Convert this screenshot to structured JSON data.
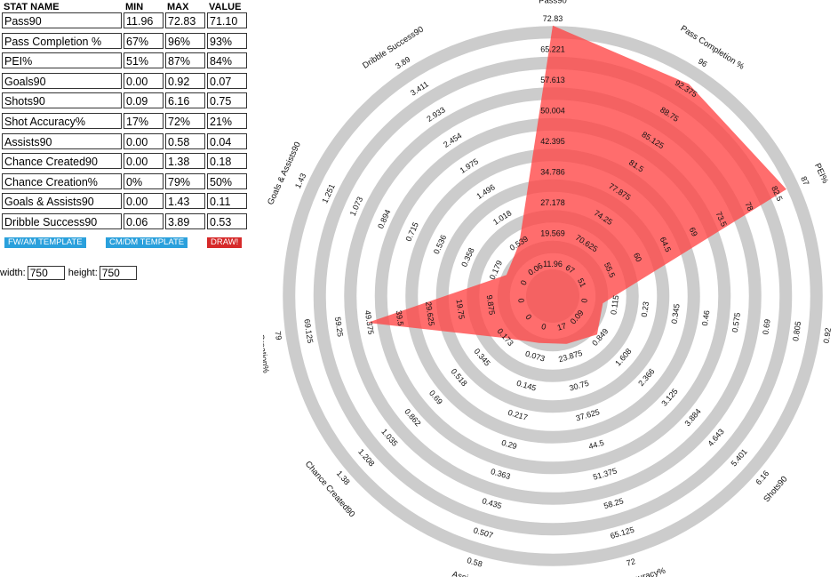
{
  "table": {
    "headers": {
      "name": "STAT NAME",
      "min": "MIN",
      "max": "MAX",
      "value": "VALUE"
    },
    "rows": [
      {
        "name": "Pass90",
        "min": "11.96",
        "max": "72.83",
        "value": "71.10"
      },
      {
        "name": "Pass Completion %",
        "min": "67%",
        "max": "96%",
        "value": "93%"
      },
      {
        "name": "PEI%",
        "min": "51%",
        "max": "87%",
        "value": "84%"
      },
      {
        "name": "Goals90",
        "min": "0.00",
        "max": "0.92",
        "value": "0.07"
      },
      {
        "name": "Shots90",
        "min": "0.09",
        "max": "6.16",
        "value": "0.75"
      },
      {
        "name": "Shot Accuracy%",
        "min": "17%",
        "max": "72%",
        "value": "21%"
      },
      {
        "name": "Assists90",
        "min": "0.00",
        "max": "0.58",
        "value": "0.04"
      },
      {
        "name": "Chance Created90",
        "min": "0.00",
        "max": "1.38",
        "value": "0.18"
      },
      {
        "name": "Chance Creation%",
        "min": "0%",
        "max": "79%",
        "value": "50%"
      },
      {
        "name": "Goals & Assists90",
        "min": "0.00",
        "max": "1.43",
        "value": "0.11"
      },
      {
        "name": "Dribble Success90",
        "min": "0.06",
        "max": "3.89",
        "value": "0.53"
      }
    ]
  },
  "buttons": {
    "fw_am": "FW/AM TEMPLATE",
    "cm_dm": "CM/DM TEMPLATE",
    "draw": "DRAW!"
  },
  "dimensions": {
    "width_label": "width:",
    "width_value": "750",
    "height_label": "height:",
    "height_value": "750"
  },
  "colors": {
    "ring": "#cccccc",
    "fill": "#ff4444",
    "accent_blue": "#2aa0dc",
    "draw_red": "#d62a2a"
  },
  "chart_data": {
    "type": "radar",
    "rings": 8,
    "axes": [
      {
        "name": "Pass90",
        "min": 11.96,
        "max": 72.83,
        "value": 71.1,
        "ticks": [
          "11.96",
          "19.569",
          "27.178",
          "34.786",
          "42.395",
          "50.004",
          "57.613",
          "65.221",
          "72.83"
        ]
      },
      {
        "name": "Pass Completion %",
        "min": 67,
        "max": 96,
        "value": 93,
        "ticks": [
          "67",
          "70.625",
          "74.25",
          "77.875",
          "81.5",
          "85.125",
          "88.75",
          "92.375",
          "96"
        ]
      },
      {
        "name": "PEI%",
        "min": 51,
        "max": 87,
        "value": 84,
        "ticks": [
          "51",
          "55.5",
          "60",
          "64.5",
          "69",
          "73.5",
          "78",
          "82.5",
          "87"
        ]
      },
      {
        "name": "Goals90",
        "min": 0,
        "max": 0.92,
        "value": 0.07,
        "ticks": [
          "0",
          "0.115",
          "0.23",
          "0.345",
          "0.46",
          "0.575",
          "0.69",
          "0.805",
          "0.92"
        ]
      },
      {
        "name": "Shots90",
        "min": 0.09,
        "max": 6.16,
        "value": 0.75,
        "ticks": [
          "0.09",
          "0.849",
          "1.608",
          "2.366",
          "3.125",
          "3.884",
          "4.643",
          "5.401",
          "6.16"
        ]
      },
      {
        "name": "Shot Accuracy%",
        "min": 17,
        "max": 72,
        "value": 21,
        "ticks": [
          "17",
          "23.875",
          "30.75",
          "37.625",
          "44.5",
          "51.375",
          "58.25",
          "65.125",
          "72"
        ]
      },
      {
        "name": "Assists90",
        "min": 0,
        "max": 0.58,
        "value": 0.04,
        "ticks": [
          "0",
          "0.073",
          "0.145",
          "0.217",
          "0.29",
          "0.363",
          "0.435",
          "0.507",
          "0.58"
        ]
      },
      {
        "name": "Chance Created90",
        "min": 0,
        "max": 1.38,
        "value": 0.18,
        "ticks": [
          "0",
          "0.173",
          "0.345",
          "0.518",
          "0.69",
          "0.862",
          "1.035",
          "1.208",
          "1.38"
        ]
      },
      {
        "name": "Chance Creation%",
        "min": 0,
        "max": 79,
        "value": 50,
        "ticks": [
          "0",
          "9.875",
          "19.75",
          "29.625",
          "39.5",
          "49.375",
          "59.25",
          "69.125",
          "79"
        ]
      },
      {
        "name": "Goals & Assists90",
        "min": 0,
        "max": 1.43,
        "value": 0.11,
        "ticks": [
          "0",
          "0.179",
          "0.358",
          "0.536",
          "0.715",
          "0.894",
          "1.073",
          "1.251",
          "1.43"
        ]
      },
      {
        "name": "Dribble Success90",
        "min": 0.06,
        "max": 3.89,
        "value": 0.53,
        "ticks": [
          "0.06",
          "0.539",
          "1.018",
          "1.496",
          "1.975",
          "2.454",
          "2.933",
          "3.411",
          "3.89"
        ]
      }
    ]
  }
}
